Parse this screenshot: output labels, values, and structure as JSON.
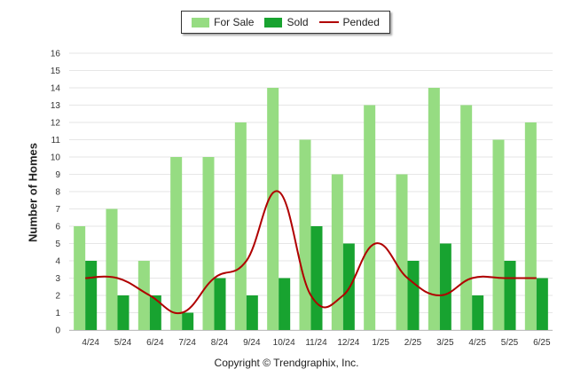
{
  "chart_data": {
    "type": "bar",
    "ylabel": "Number of Homes",
    "ylim": [
      0,
      16
    ],
    "ytick_labels": [
      "0",
      "1",
      "2",
      "3",
      "4",
      "5",
      "6",
      "7",
      "8",
      "9",
      "10",
      "11",
      "12",
      "13",
      "14",
      "15",
      "16"
    ],
    "categories": [
      "4/24",
      "5/24",
      "6/24",
      "7/24",
      "8/24",
      "9/24",
      "10/24",
      "11/24",
      "12/24",
      "1/25",
      "2/25",
      "3/25",
      "4/25",
      "5/25",
      "6/25"
    ],
    "series": [
      {
        "name": "For Sale",
        "type": "bar",
        "color": "#96dc82",
        "values": [
          6,
          7,
          4,
          10,
          10,
          12,
          14,
          11,
          9,
          13,
          9,
          14,
          13,
          11,
          12
        ]
      },
      {
        "name": "Sold",
        "type": "bar",
        "color": "#18a330",
        "values": [
          4,
          2,
          2,
          1,
          3,
          2,
          3,
          6,
          5,
          0,
          4,
          5,
          2,
          4,
          3
        ]
      },
      {
        "name": "Pended",
        "type": "line",
        "color": "#b00000",
        "values": [
          3,
          3,
          2,
          1,
          3,
          4,
          8,
          2,
          2,
          5,
          3,
          2,
          3,
          3,
          3
        ]
      }
    ],
    "grid": true,
    "legend": "top-center"
  },
  "footer": "Copyright © Trendgraphix, Inc."
}
